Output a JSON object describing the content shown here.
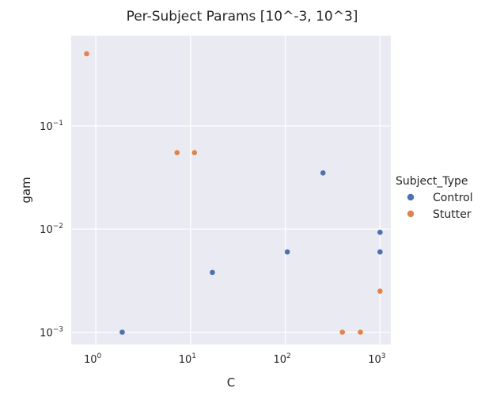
{
  "chart_data": {
    "type": "scatter",
    "title": "Per-Subject Params [10^-3, 10^3]",
    "xlabel": "C",
    "ylabel": "gam",
    "xscale": "log",
    "yscale": "log",
    "xlim": [
      0.55,
      1300
    ],
    "ylim": [
      0.00076,
      0.75
    ],
    "x_ticks": [
      {
        "base": "10",
        "exp": "0",
        "value": 1
      },
      {
        "base": "10",
        "exp": "1",
        "value": 10
      },
      {
        "base": "10",
        "exp": "2",
        "value": 100
      },
      {
        "base": "10",
        "exp": "3",
        "value": 1000
      }
    ],
    "y_ticks": [
      {
        "base": "10",
        "exp": "−3",
        "value": 0.001
      },
      {
        "base": "10",
        "exp": "−2",
        "value": 0.01
      },
      {
        "base": "10",
        "exp": "−1",
        "value": 0.1
      }
    ],
    "grid": true,
    "legend": {
      "title": "Subject_Type",
      "placement": "right",
      "entries": [
        {
          "name": "Control",
          "color": "#4c72b0"
        },
        {
          "name": "Stutter",
          "color": "#dd8452"
        }
      ]
    },
    "series": [
      {
        "name": "Control",
        "color": "#4c72b0",
        "points": [
          {
            "x": 1.9,
            "y": 0.001
          },
          {
            "x": 17,
            "y": 0.0038
          },
          {
            "x": 105,
            "y": 0.006
          },
          {
            "x": 250,
            "y": 0.035
          },
          {
            "x": 1000,
            "y": 0.0093
          },
          {
            "x": 1000,
            "y": 0.006
          }
        ]
      },
      {
        "name": "Stutter",
        "color": "#dd8452",
        "points": [
          {
            "x": 0.8,
            "y": 0.5
          },
          {
            "x": 7.2,
            "y": 0.055
          },
          {
            "x": 11,
            "y": 0.055
          },
          {
            "x": 400,
            "y": 0.001
          },
          {
            "x": 620,
            "y": 0.001
          },
          {
            "x": 1000,
            "y": 0.0025
          }
        ]
      }
    ]
  }
}
